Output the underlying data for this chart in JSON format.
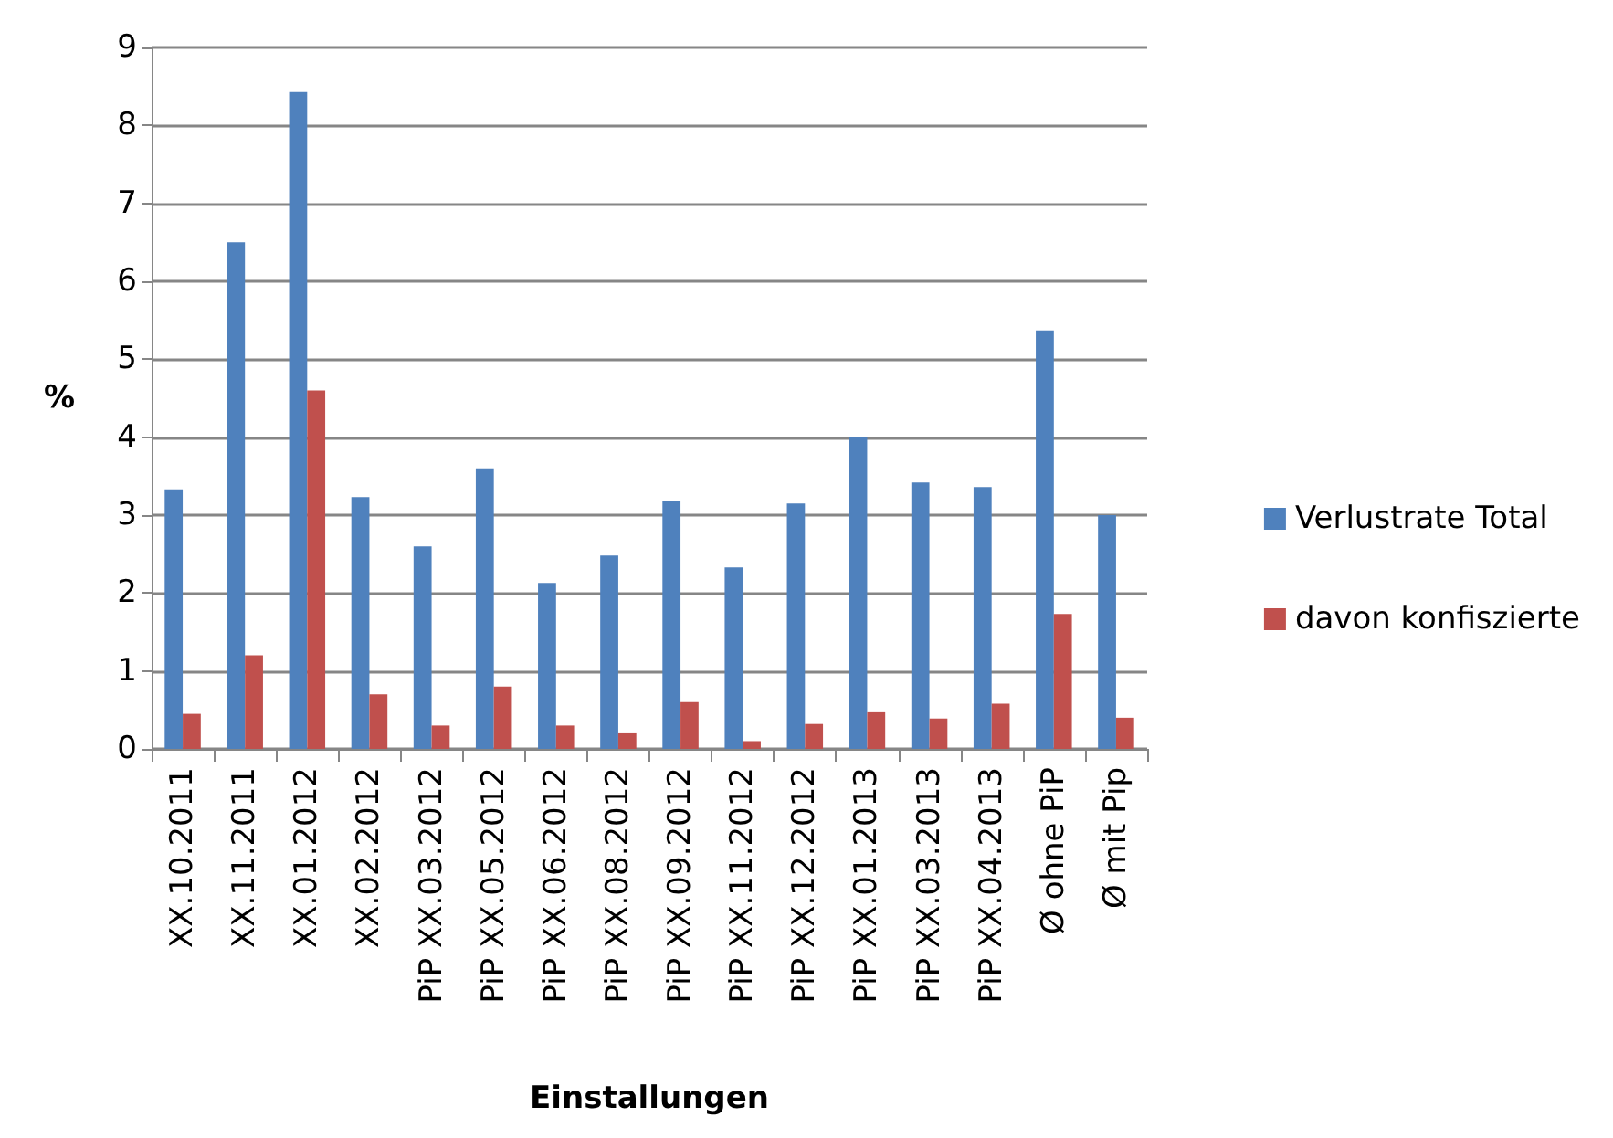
{
  "chart_data": {
    "type": "bar",
    "xlabel": "Einstallungen",
    "ylabel": "%",
    "categories": [
      "XX.10.2011",
      "XX.11.2011",
      "XX.01.2012",
      "XX.02.2012",
      "PiP XX.03.2012",
      "PiP XX.05.2012",
      "PiP XX.06.2012",
      "PiP XX.08.2012",
      "PiP XX.09.2012",
      "PiP XX.11.2012",
      "PiP XX.12.2012",
      "PiP XX.01.2013",
      "PiP XX.03.2013",
      "PiP XX.04.2013",
      "Ø ohne PiP",
      "Ø mit Pip"
    ],
    "series": [
      {
        "name": "Verlustrate Total",
        "color": "#4f81bd",
        "values": [
          3.33,
          6.5,
          8.43,
          3.23,
          2.6,
          3.6,
          2.13,
          2.48,
          3.18,
          2.33,
          3.15,
          4.0,
          3.42,
          3.36,
          5.37,
          3.0
        ]
      },
      {
        "name": "davon konfiszierte",
        "color": "#c0504d",
        "values": [
          0.45,
          1.2,
          4.6,
          0.7,
          0.3,
          0.8,
          0.3,
          0.2,
          0.6,
          0.1,
          0.32,
          0.47,
          0.39,
          0.58,
          1.73,
          0.4
        ]
      }
    ],
    "ylim": [
      0,
      9
    ],
    "yticks": [
      0,
      1,
      2,
      3,
      4,
      5,
      6,
      7,
      8,
      9
    ],
    "grid": "y",
    "legend": "right"
  }
}
